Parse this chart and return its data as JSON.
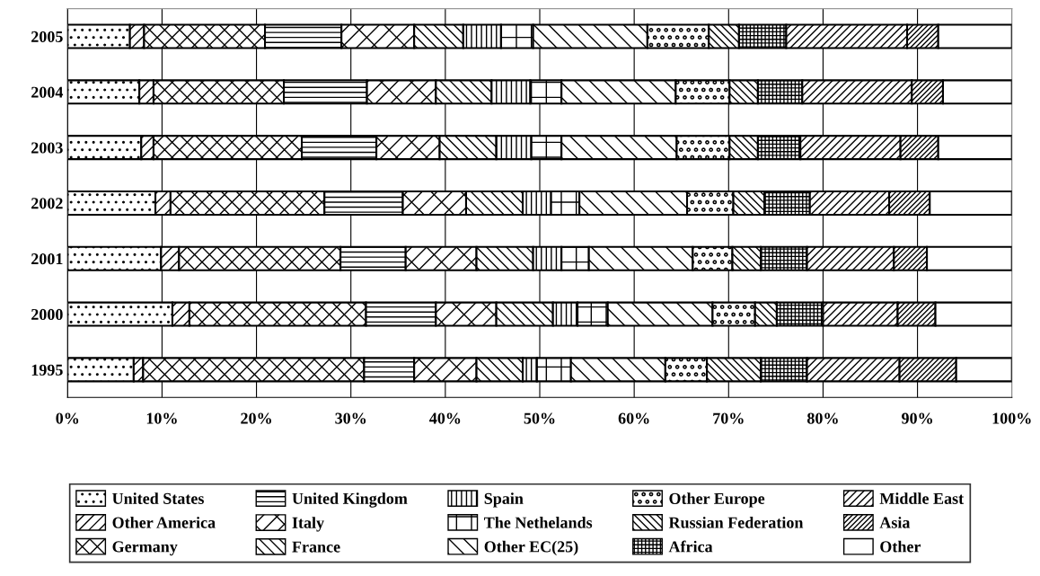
{
  "chart_data": {
    "type": "bar",
    "orientation": "horizontal",
    "stacked": true,
    "grid": "x",
    "legend": "bottom",
    "categories": [
      "2005",
      "2004",
      "2003",
      "2002",
      "2001",
      "2000",
      "1995"
    ],
    "xlim": [
      0,
      100
    ],
    "xticks": [
      {
        "value": 0,
        "label": "0%"
      },
      {
        "value": 10,
        "label": "10%"
      },
      {
        "value": 20,
        "label": "20%"
      },
      {
        "value": 30,
        "label": "30%"
      },
      {
        "value": 40,
        "label": "40%"
      },
      {
        "value": 50,
        "label": "50%"
      },
      {
        "value": 60,
        "label": "60%"
      },
      {
        "value": 70,
        "label": "70%"
      },
      {
        "value": 80,
        "label": "80%"
      },
      {
        "value": 90,
        "label": "90%"
      },
      {
        "value": 100,
        "label": "100%"
      }
    ],
    "series": [
      {
        "name": "United States",
        "color": "#000000",
        "values": [
          6.6,
          7.6,
          7.8,
          9.3,
          9.9,
          11.1,
          7.0
        ]
      },
      {
        "name": "Other America",
        "color": "#000000",
        "values": [
          1.5,
          1.5,
          1.3,
          1.6,
          1.9,
          1.8,
          1.0
        ]
      },
      {
        "name": "Germany",
        "color": "#000000",
        "values": [
          12.8,
          13.8,
          15.7,
          16.3,
          17.1,
          18.7,
          23.4
        ]
      },
      {
        "name": "United Kingdom",
        "color": "#000000",
        "values": [
          8.1,
          8.8,
          7.9,
          8.3,
          6.9,
          7.4,
          5.3
        ]
      },
      {
        "name": "Italy",
        "color": "#000000",
        "values": [
          7.7,
          7.3,
          6.7,
          6.7,
          7.5,
          6.4,
          6.6
        ]
      },
      {
        "name": "France",
        "color": "#000000",
        "values": [
          5.2,
          5.9,
          6.0,
          6.0,
          6.0,
          6.0,
          4.9
        ]
      },
      {
        "name": "Spain",
        "color": "#000000",
        "values": [
          4.0,
          4.1,
          3.7,
          3.0,
          3.0,
          2.6,
          1.5
        ]
      },
      {
        "name": "The Nethelands",
        "color": "#000000",
        "values": [
          3.4,
          3.3,
          3.2,
          3.0,
          2.9,
          3.2,
          3.6
        ]
      },
      {
        "name": "Other EC(25)",
        "color": "#000000",
        "values": [
          12.1,
          12.1,
          12.2,
          11.4,
          11.0,
          11.1,
          10.0
        ]
      },
      {
        "name": "Other Europe",
        "color": "#000000",
        "values": [
          6.5,
          5.7,
          5.6,
          4.9,
          4.2,
          4.5,
          4.4
        ]
      },
      {
        "name": "Russian Federation",
        "color": "#000000",
        "values": [
          3.2,
          3.0,
          3.0,
          3.3,
          3.0,
          2.3,
          5.7
        ]
      },
      {
        "name": "Africa",
        "color": "#000000",
        "values": [
          5.0,
          4.7,
          4.5,
          4.8,
          4.9,
          4.9,
          4.9
        ]
      },
      {
        "name": "Middle East",
        "color": "#000000",
        "values": [
          12.8,
          11.6,
          10.6,
          8.4,
          9.2,
          7.9,
          9.8
        ]
      },
      {
        "name": "Asia",
        "color": "#000000",
        "values": [
          3.3,
          3.3,
          4.0,
          4.3,
          3.5,
          4.0,
          6.0
        ]
      },
      {
        "name": "Other",
        "color": "#ffffff",
        "values": [
          7.8,
          7.3,
          7.8,
          8.7,
          9.0,
          8.1,
          5.9
        ]
      }
    ]
  }
}
